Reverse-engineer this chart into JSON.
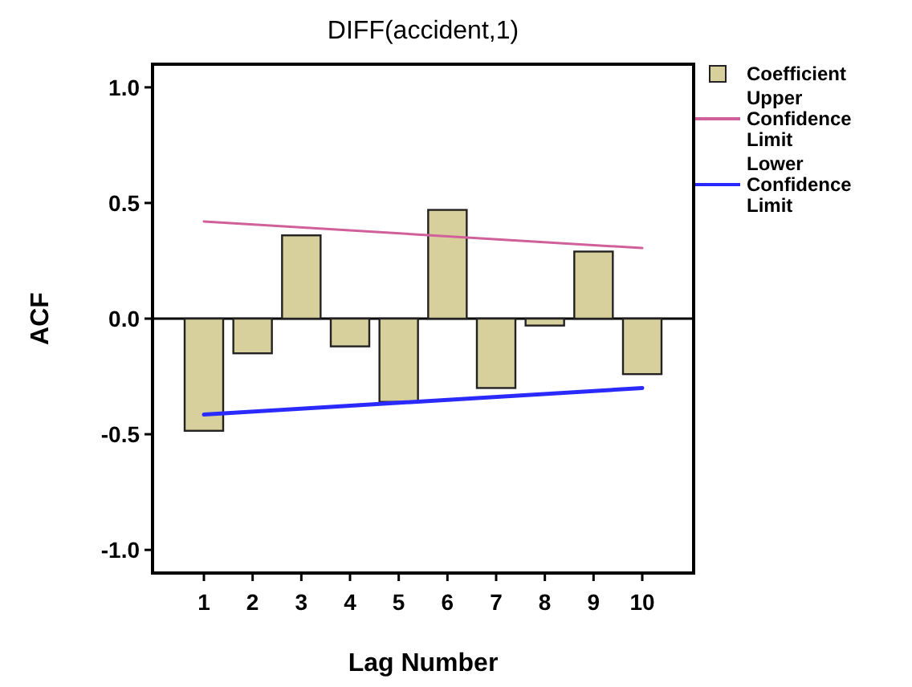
{
  "chart_data": {
    "type": "bar",
    "title": "DIFF(accident,1)",
    "xlabel": "Lag Number",
    "ylabel": "ACF",
    "categories": [
      "1",
      "2",
      "3",
      "4",
      "5",
      "6",
      "7",
      "8",
      "9",
      "10"
    ],
    "series": [
      {
        "name": "Coefficient",
        "color": "#d8d09c",
        "values": [
          -0.485,
          -0.15,
          0.36,
          -0.12,
          -0.36,
          0.47,
          -0.3,
          -0.03,
          0.29,
          -0.24
        ]
      },
      {
        "name": "Upper Confidence Limit",
        "type": "line",
        "color": "#d0609a",
        "x": [
          "1",
          "10"
        ],
        "values": [
          0.42,
          0.305
        ]
      },
      {
        "name": "Lower Confidence Limit",
        "type": "line",
        "color": "#2a2aff",
        "x": [
          "1",
          "10"
        ],
        "values": [
          -0.415,
          -0.3
        ]
      }
    ],
    "ylim": [
      -1.1,
      1.1
    ],
    "yticks": [
      {
        "value": 1,
        "label": "1.0"
      },
      {
        "value": 0.5,
        "label": "0.5"
      },
      {
        "value": 0,
        "label": "0.0"
      },
      {
        "value": -0.5,
        "label": "-0.5"
      },
      {
        "value": -1,
        "label": "-1.0"
      }
    ],
    "ref_lines": [
      {
        "axis": "y",
        "value": 0,
        "color": "#000000"
      }
    ],
    "grid": false,
    "legend": "top right"
  }
}
